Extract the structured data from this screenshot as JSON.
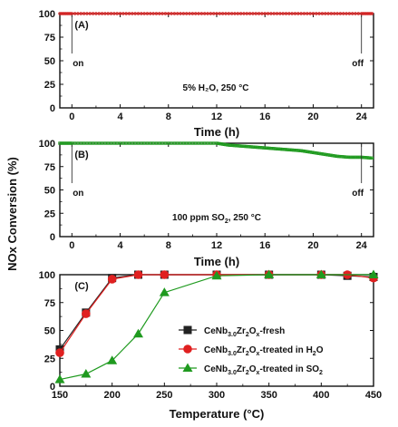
{
  "ylabel_shared": "NOx Conversion (%)",
  "chart_data": [
    {
      "type": "line",
      "panel": "(A)",
      "xlabel": "Time (h)",
      "ylabel": "",
      "xlim": [
        -1,
        25
      ],
      "ylim": [
        0,
        100
      ],
      "xticks": [
        0,
        4,
        8,
        12,
        16,
        20,
        24
      ],
      "yticks": [
        0,
        25,
        50,
        75,
        100
      ],
      "grid": false,
      "annotation": "5% H₂O, 250 °C",
      "on_label": "on",
      "off_label": "off",
      "markers": [
        {
          "label": "on",
          "x": 0
        },
        {
          "label": "off",
          "x": 24
        }
      ],
      "series": [
        {
          "color": "#d42020",
          "marker": "small-circle",
          "x": [
            -1,
            0,
            2,
            4,
            6,
            8,
            10,
            12,
            14,
            16,
            18,
            20,
            22,
            24,
            25
          ],
          "values": [
            100,
            100,
            100,
            100,
            100,
            100,
            100,
            100,
            100,
            100,
            100,
            100,
            100,
            100,
            100
          ]
        }
      ]
    },
    {
      "type": "line",
      "panel": "(B)",
      "xlabel": "Time (h)",
      "ylabel": "",
      "xlim": [
        -1,
        25
      ],
      "ylim": [
        0,
        100
      ],
      "xticks": [
        0,
        4,
        8,
        12,
        16,
        20,
        24
      ],
      "yticks": [
        0,
        25,
        50,
        75,
        100
      ],
      "grid": false,
      "annotation_main": "100 ppm SO",
      "annotation_sub": "2",
      "annotation_tail": ", 250 °C",
      "on_label": "on",
      "off_label": "off",
      "markers": [
        {
          "label": "on",
          "x": 0
        },
        {
          "label": "off",
          "x": 24
        }
      ],
      "series": [
        {
          "color": "#1f9a1f",
          "marker": "small-square",
          "x": [
            -1,
            0,
            2,
            4,
            6,
            8,
            10,
            12,
            13,
            14,
            15,
            16,
            17,
            18,
            19,
            20,
            21,
            22,
            23,
            24,
            25
          ],
          "values": [
            100,
            100,
            100,
            100,
            100,
            100,
            100,
            100,
            98,
            97,
            96,
            95,
            94,
            93,
            92,
            90,
            88,
            86,
            85,
            85,
            84
          ]
        }
      ]
    },
    {
      "type": "line",
      "panel": "(C)",
      "xlabel": "Temperature (°C)",
      "ylabel": "",
      "xlim": [
        150,
        450
      ],
      "ylim": [
        0,
        100
      ],
      "xticks": [
        150,
        200,
        250,
        300,
        350,
        400,
        450
      ],
      "yticks": [
        0,
        25,
        50,
        75,
        100
      ],
      "grid": false,
      "legend_position": "right",
      "series": [
        {
          "name": "CeNb3.0Zr2Ox-fresh",
          "color": "#222222",
          "marker": "square",
          "x": [
            150,
            175,
            200,
            225,
            250,
            300,
            350,
            400,
            425,
            450
          ],
          "values": [
            33,
            66,
            97,
            100,
            100,
            100,
            100,
            100,
            99,
            98
          ]
        },
        {
          "name": "CeNb3.0Zr2Ox-treated in H2O",
          "color": "#e02020",
          "marker": "circle",
          "x": [
            150,
            175,
            200,
            225,
            250,
            300,
            350,
            400,
            425,
            450
          ],
          "values": [
            30,
            65,
            96,
            100,
            100,
            100,
            100,
            100,
            100,
            97
          ]
        },
        {
          "name": "CeNb3.0Zr2Ox-treated in SO2",
          "color": "#1f9a1f",
          "marker": "triangle",
          "x": [
            150,
            175,
            200,
            225,
            250,
            300,
            350,
            400,
            450
          ],
          "values": [
            6,
            11,
            23,
            47,
            84,
            99,
            100,
            100,
            100
          ]
        }
      ],
      "legend_items": [
        {
          "pre": "CeNb",
          "sub1": "3.0",
          "mid": "Zr",
          "sub2": "2",
          "mid2": "O",
          "sub3": "x",
          "post": "-fresh",
          "post_sub": ""
        },
        {
          "pre": "CeNb",
          "sub1": "3.0",
          "mid": "Zr",
          "sub2": "2",
          "mid2": "O",
          "sub3": "x",
          "post": "-treated in H",
          "post_sub": "2",
          "post_tail": "O"
        },
        {
          "pre": "CeNb",
          "sub1": "3.0",
          "mid": "Zr",
          "sub2": "2",
          "mid2": "O",
          "sub3": "x",
          "post": "-treated in SO",
          "post_sub": "2",
          "post_tail": ""
        }
      ]
    }
  ]
}
